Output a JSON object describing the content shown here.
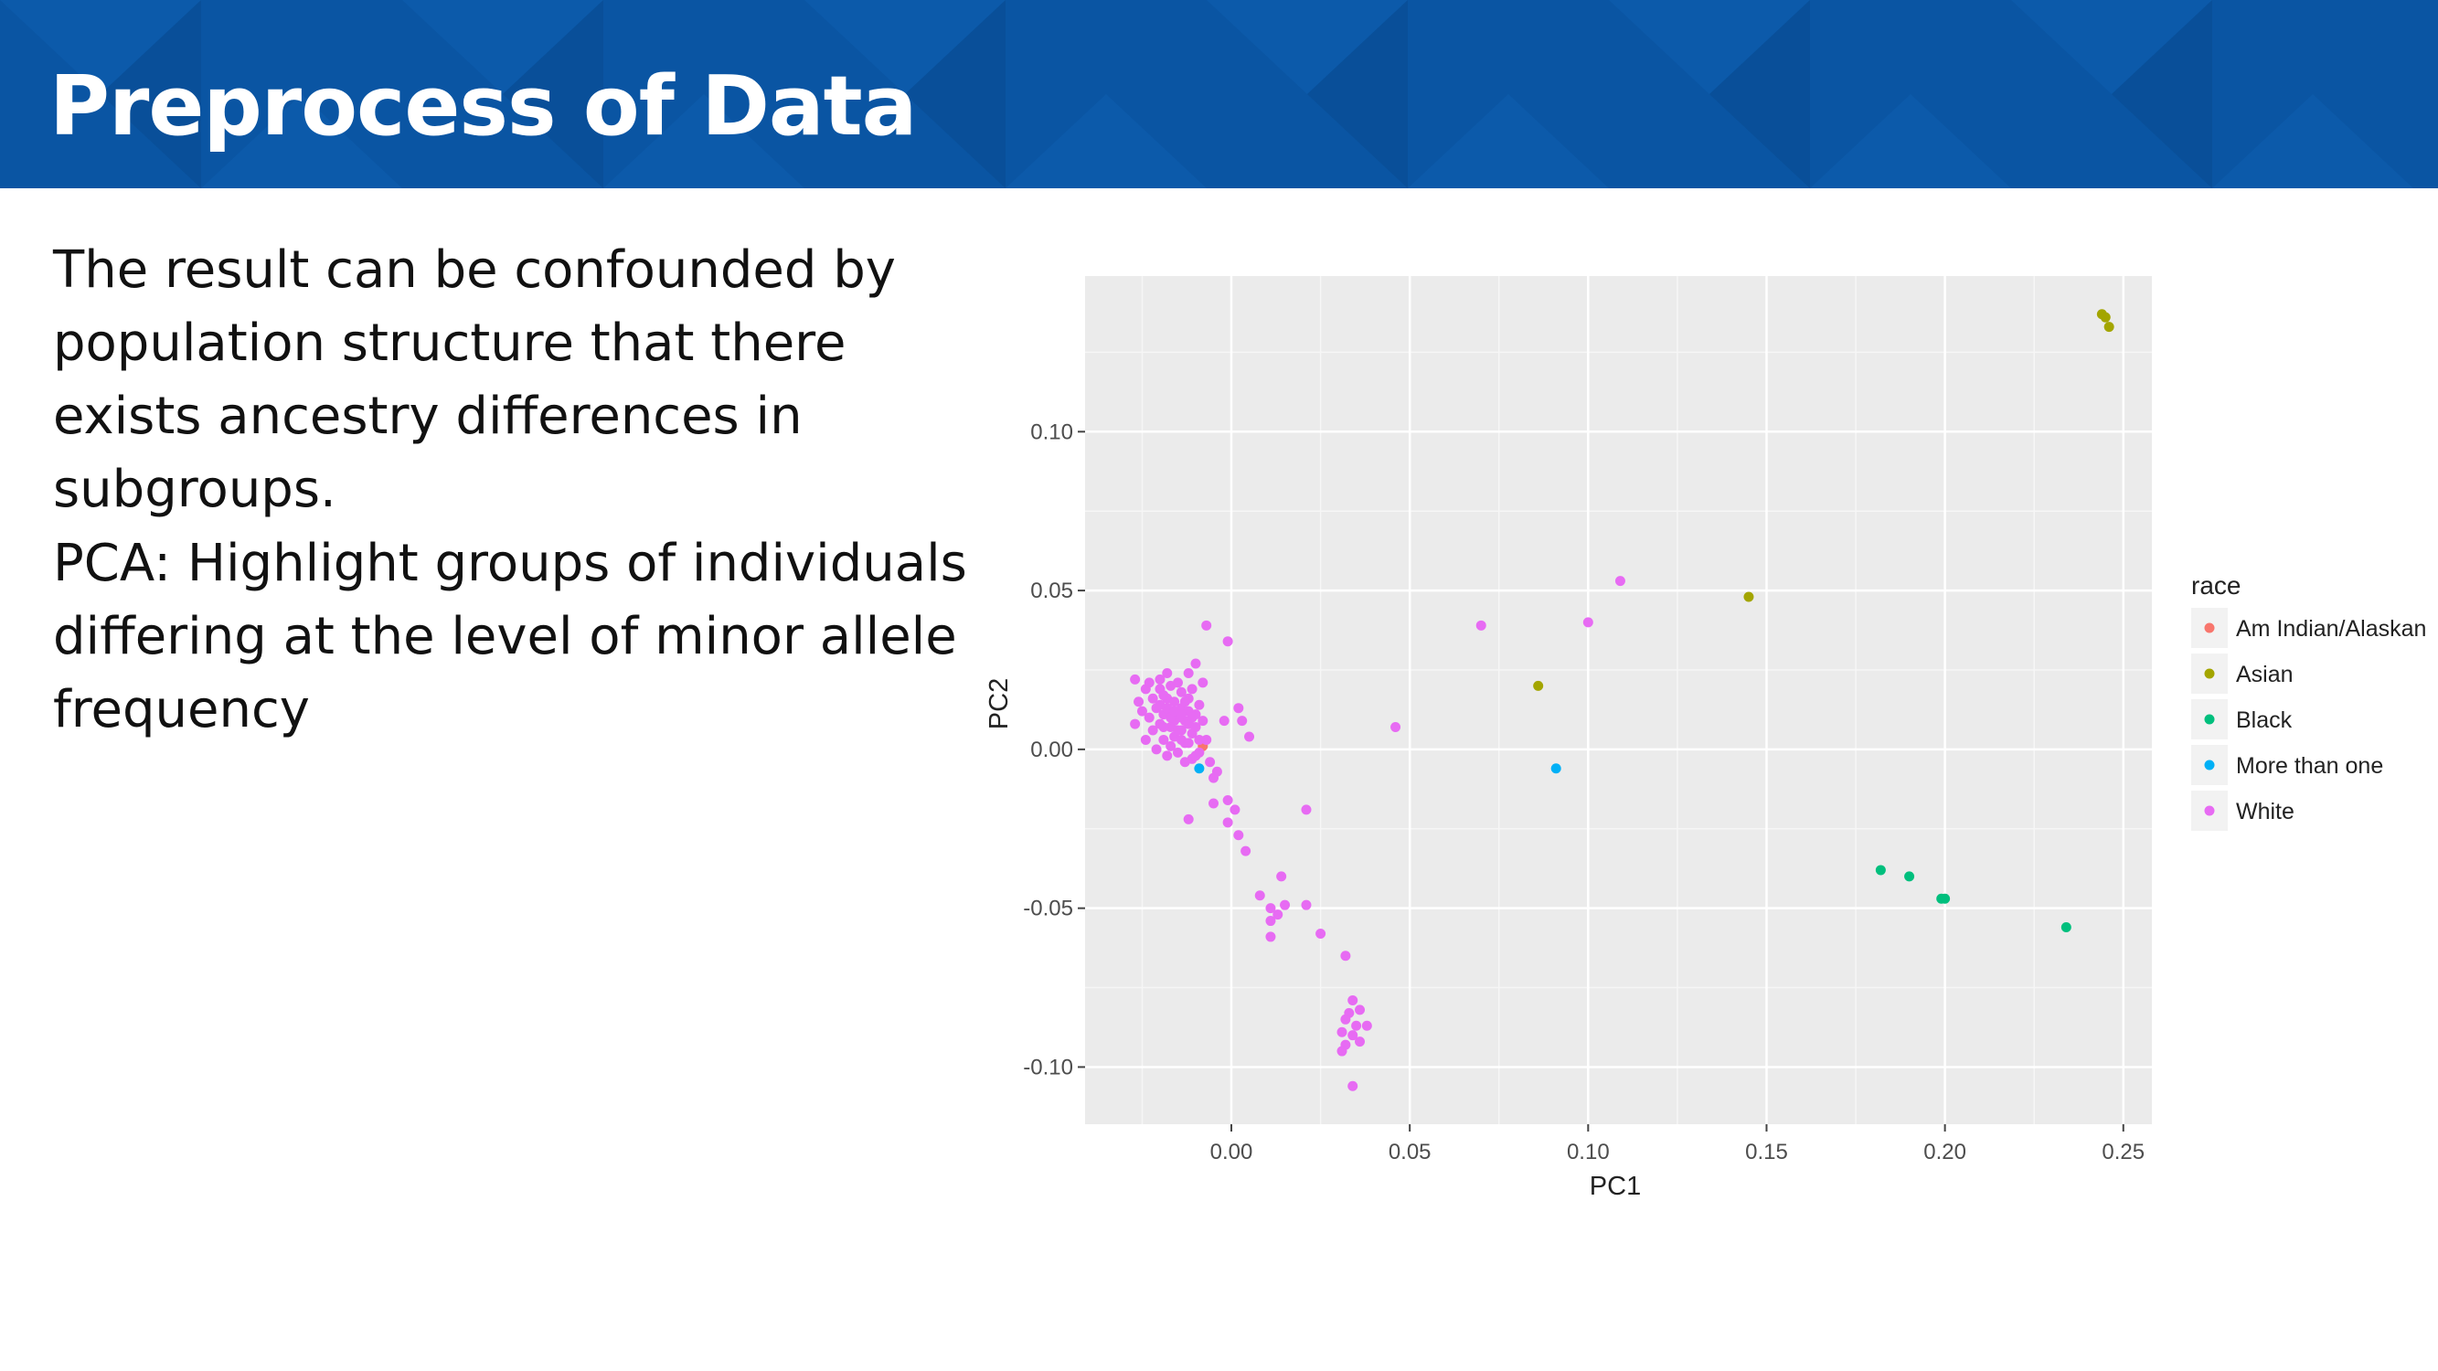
{
  "slide": {
    "title": "Preprocess of Data",
    "paragraphs": [
      "The result can be confounded by population structure that there exists ancestry differences in subgroups.",
      "PCA: Highlight groups of individuals differing at the level of minor allele frequency"
    ],
    "banner_color": "#0a55a3"
  },
  "chart_data": {
    "type": "scatter",
    "xlabel": "PC1",
    "ylabel": "PC2",
    "xlim": [
      -0.041,
      0.258
    ],
    "ylim": [
      -0.118,
      0.149
    ],
    "xticks": [
      0.0,
      0.05,
      0.1,
      0.15,
      0.2,
      0.25
    ],
    "xtick_labels": [
      "0.00",
      "0.05",
      "0.10",
      "0.15",
      "0.20",
      "0.25"
    ],
    "yticks": [
      -0.1,
      -0.05,
      0.0,
      0.05,
      0.1
    ],
    "ytick_labels": [
      "-0.10",
      "-0.05",
      "0.00",
      "0.05",
      "0.10"
    ],
    "grid": true,
    "panel_background": "#ebebeb",
    "legend": {
      "title": "race",
      "position": "right"
    },
    "series": [
      {
        "name": "Am Indian/Alaskan",
        "color": "#f8766d",
        "points": [
          [
            -0.008,
            0.001
          ]
        ]
      },
      {
        "name": "Asian",
        "color": "#a3a500",
        "points": [
          [
            0.244,
            0.137
          ],
          [
            0.245,
            0.136
          ],
          [
            0.246,
            0.133
          ],
          [
            0.145,
            0.048
          ],
          [
            0.086,
            0.02
          ]
        ]
      },
      {
        "name": "Black",
        "color": "#00bf7d",
        "points": [
          [
            0.182,
            -0.038
          ],
          [
            0.19,
            -0.04
          ],
          [
            0.199,
            -0.047
          ],
          [
            0.2,
            -0.047
          ],
          [
            0.234,
            -0.056
          ]
        ]
      },
      {
        "name": "More than one",
        "color": "#00b0f6",
        "points": [
          [
            0.091,
            -0.006
          ],
          [
            -0.009,
            -0.006
          ]
        ]
      },
      {
        "name": "White",
        "color": "#e76bf3",
        "points": [
          [
            0.109,
            0.053
          ],
          [
            0.1,
            0.04
          ],
          [
            0.07,
            0.039
          ],
          [
            0.046,
            0.007
          ],
          [
            -0.007,
            0.039
          ],
          [
            -0.001,
            0.034
          ],
          [
            0.002,
            0.013
          ],
          [
            0.003,
            0.009
          ],
          [
            -0.002,
            0.009
          ],
          [
            0.005,
            0.004
          ],
          [
            -0.007,
            0.003
          ],
          [
            -0.006,
            -0.004
          ],
          [
            -0.004,
            -0.007
          ],
          [
            -0.005,
            -0.009
          ],
          [
            -0.012,
            -0.022
          ],
          [
            -0.005,
            -0.017
          ],
          [
            -0.001,
            -0.016
          ],
          [
            0.001,
            -0.019
          ],
          [
            -0.001,
            -0.023
          ],
          [
            0.002,
            -0.027
          ],
          [
            0.004,
            -0.032
          ],
          [
            0.021,
            -0.019
          ],
          [
            0.014,
            -0.04
          ],
          [
            0.008,
            -0.046
          ],
          [
            0.011,
            -0.05
          ],
          [
            0.013,
            -0.052
          ],
          [
            0.015,
            -0.049
          ],
          [
            0.011,
            -0.054
          ],
          [
            0.021,
            -0.049
          ],
          [
            0.025,
            -0.058
          ],
          [
            0.011,
            -0.059
          ],
          [
            0.032,
            -0.065
          ],
          [
            0.034,
            -0.079
          ],
          [
            0.033,
            -0.083
          ],
          [
            0.036,
            -0.082
          ],
          [
            0.032,
            -0.085
          ],
          [
            0.035,
            -0.087
          ],
          [
            0.038,
            -0.087
          ],
          [
            0.031,
            -0.089
          ],
          [
            0.034,
            -0.09
          ],
          [
            0.036,
            -0.092
          ],
          [
            0.032,
            -0.093
          ],
          [
            0.031,
            -0.095
          ],
          [
            0.034,
            -0.106
          ],
          [
            -0.027,
            0.022
          ],
          [
            -0.026,
            0.015
          ],
          [
            -0.027,
            0.008
          ],
          [
            -0.025,
            0.012
          ],
          [
            -0.024,
            0.019
          ],
          [
            -0.024,
            0.003
          ],
          [
            -0.023,
            0.021
          ],
          [
            -0.023,
            0.01
          ],
          [
            -0.022,
            0.016
          ],
          [
            -0.022,
            0.006
          ],
          [
            -0.021,
            0.0
          ],
          [
            -0.021,
            0.013
          ],
          [
            -0.02,
            0.019
          ],
          [
            -0.02,
            0.022
          ],
          [
            -0.02,
            0.008
          ],
          [
            -0.019,
            0.011
          ],
          [
            -0.019,
            0.003
          ],
          [
            -0.018,
            0.016
          ],
          [
            -0.018,
            0.024
          ],
          [
            -0.018,
            -0.002
          ],
          [
            -0.017,
            0.012
          ],
          [
            -0.017,
            0.007
          ],
          [
            -0.017,
            0.02
          ],
          [
            -0.016,
            0.004
          ],
          [
            -0.016,
            0.015
          ],
          [
            -0.015,
            0.021
          ],
          [
            -0.015,
            0.01
          ],
          [
            -0.015,
            -0.001
          ],
          [
            -0.014,
            0.013
          ],
          [
            -0.014,
            0.006
          ],
          [
            -0.014,
            0.018
          ],
          [
            -0.013,
            0.002
          ],
          [
            -0.013,
            0.009
          ],
          [
            -0.012,
            0.016
          ],
          [
            -0.012,
            0.024
          ],
          [
            -0.012,
            0.012
          ],
          [
            -0.011,
            0.005
          ],
          [
            -0.011,
            0.019
          ],
          [
            -0.011,
            -0.003
          ],
          [
            -0.01,
            0.011
          ],
          [
            -0.01,
            0.007
          ],
          [
            -0.01,
            0.027
          ],
          [
            -0.009,
            0.014
          ],
          [
            -0.009,
            0.003
          ],
          [
            -0.008,
            0.021
          ],
          [
            -0.008,
            0.009
          ],
          [
            -0.019,
            0.007
          ],
          [
            -0.016,
            0.009
          ],
          [
            -0.014,
            0.011
          ],
          [
            -0.012,
            0.008
          ],
          [
            -0.018,
            0.013
          ],
          [
            -0.02,
            0.014
          ],
          [
            -0.013,
            0.015
          ],
          [
            -0.015,
            0.006
          ],
          [
            -0.017,
            0.01
          ],
          [
            -0.011,
            0.01
          ],
          [
            -0.016,
            0.012
          ],
          [
            -0.019,
            0.017
          ],
          [
            -0.014,
            0.003
          ],
          [
            -0.012,
            0.002
          ],
          [
            -0.009,
            -0.001
          ],
          [
            -0.01,
            -0.002
          ],
          [
            -0.013,
            -0.004
          ],
          [
            -0.017,
            0.001
          ]
        ]
      }
    ]
  }
}
